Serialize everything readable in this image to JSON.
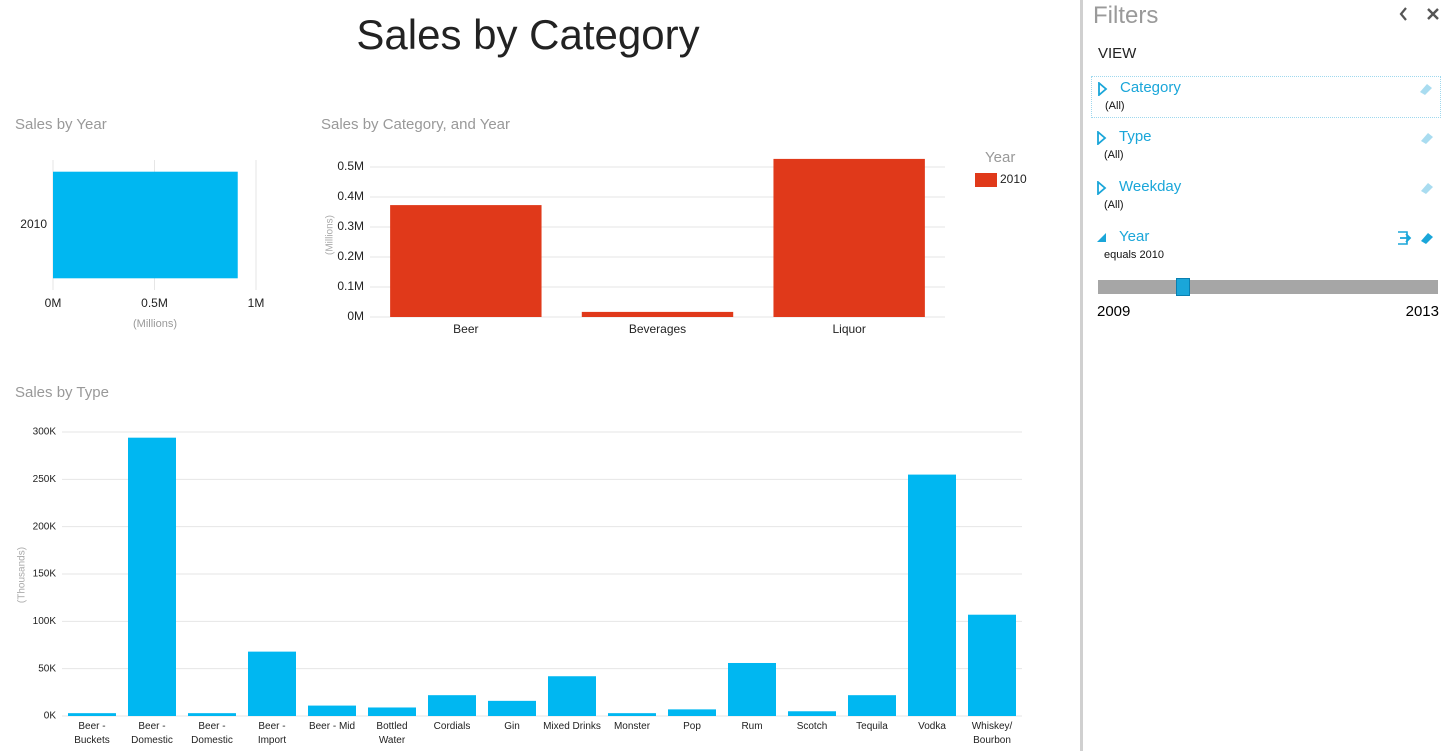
{
  "title": "Sales by Category",
  "chart_data": [
    {
      "type": "bar",
      "orientation": "horizontal",
      "title": "Sales by Year",
      "categories": [
        "2010"
      ],
      "values": [
        0.91
      ],
      "color": "#00b7f1",
      "xlabel": "(Millions)",
      "xlim": [
        0,
        1
      ],
      "xticks": [
        {
          "value": 0,
          "label": "0M"
        },
        {
          "value": 0.5,
          "label": "0.5M"
        },
        {
          "value": 1,
          "label": "1M"
        }
      ],
      "grid": true
    },
    {
      "type": "bar",
      "title": "Sales by Category, and Year",
      "categories": [
        "Beer",
        "Beverages",
        "Liquor"
      ],
      "series": [
        {
          "name": "2010",
          "color": "#e0391a",
          "values": [
            0.373,
            0.017,
            0.527
          ]
        }
      ],
      "legend_title": "Year",
      "ylabel": "(Millions)",
      "ylim": [
        0,
        0.55
      ],
      "yticks": [
        {
          "value": 0,
          "label": "0M"
        },
        {
          "value": 0.1,
          "label": "0.1M"
        },
        {
          "value": 0.2,
          "label": "0.2M"
        },
        {
          "value": 0.3,
          "label": "0.3M"
        },
        {
          "value": 0.4,
          "label": "0.4M"
        },
        {
          "value": 0.5,
          "label": "0.5M"
        }
      ],
      "grid": true
    },
    {
      "type": "bar",
      "title": "Sales by Type",
      "categories": [
        "Beer - Buckets",
        "Beer - Domestic",
        "Beer - Domestic",
        "Beer - Import",
        "Beer - Mid",
        "Bottled Water",
        "Cordials",
        "Gin",
        "Mixed Drinks",
        "Monster",
        "Pop",
        "Rum",
        "Scotch",
        "Tequila",
        "Vodka",
        "Whiskey/ Bourbon"
      ],
      "values": [
        3,
        294,
        3,
        68,
        11,
        9,
        22,
        16,
        42,
        3,
        7,
        56,
        5,
        22,
        255,
        107
      ],
      "color": "#00b7f1",
      "ylabel": "(Thousands)",
      "ylim": [
        0,
        300
      ],
      "yticks": [
        {
          "value": 0,
          "label": "0K"
        },
        {
          "value": 50,
          "label": "50K"
        },
        {
          "value": 100,
          "label": "100K"
        },
        {
          "value": 150,
          "label": "150K"
        },
        {
          "value": 200,
          "label": "200K"
        },
        {
          "value": 250,
          "label": "250K"
        },
        {
          "value": 300,
          "label": "300K"
        }
      ],
      "grid": true
    }
  ],
  "filters": {
    "title": "Filters",
    "section": "VIEW",
    "items": [
      {
        "name": "Category",
        "state": "(All)"
      },
      {
        "name": "Type",
        "state": "(All)"
      },
      {
        "name": "Weekday",
        "state": "(All)"
      },
      {
        "name": "Year",
        "state": "equals 2010"
      }
    ],
    "slider": {
      "min": 2009,
      "max": 2013,
      "value": 2010
    }
  }
}
